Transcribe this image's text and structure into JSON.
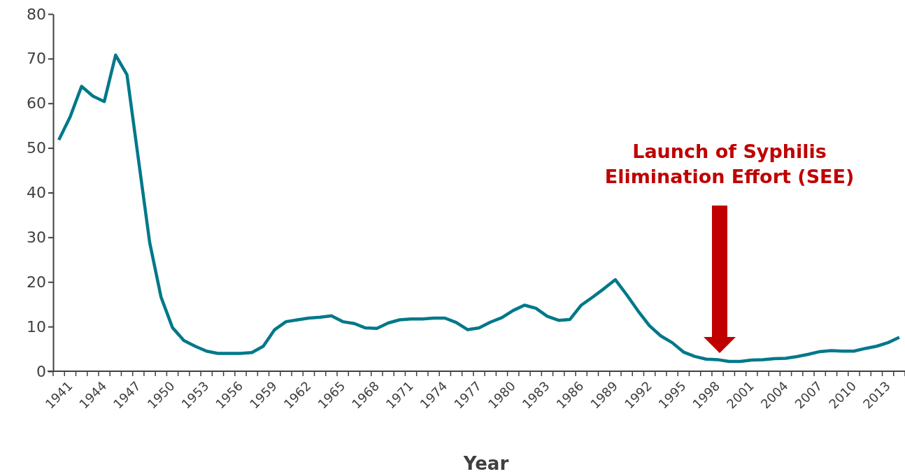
{
  "chart_data": {
    "type": "line",
    "xlabel": "Year",
    "categories": [
      "1941",
      null,
      null,
      "1944",
      null,
      null,
      "1947",
      null,
      null,
      "1950",
      null,
      null,
      "1953",
      null,
      null,
      "1956",
      null,
      null,
      "1959",
      null,
      null,
      "1962",
      null,
      null,
      "1965",
      null,
      null,
      "1968",
      null,
      null,
      "1971",
      null,
      null,
      "1974",
      null,
      null,
      "1977",
      null,
      null,
      "1980",
      null,
      null,
      "1983",
      null,
      null,
      "1986",
      null,
      null,
      "1989",
      null,
      null,
      "1992",
      null,
      null,
      "1995",
      null,
      null,
      "1998",
      null,
      null,
      "2001",
      null,
      null,
      "2004",
      null,
      null,
      "2007",
      null,
      null,
      "2010",
      null,
      null,
      "2013",
      null,
      null
    ],
    "series": [
      {
        "color": "#00788a",
        "values": [
          51.8,
          57.0,
          63.8,
          61.6,
          60.4,
          70.8,
          66.4,
          47.6,
          28.8,
          16.6,
          9.8,
          6.9,
          5.6,
          4.5,
          4.0,
          4.0,
          4.0,
          4.2,
          5.6,
          9.3,
          11.1,
          11.5,
          11.9,
          12.1,
          12.4,
          11.1,
          10.7,
          9.7,
          9.6,
          10.8,
          11.5,
          11.7,
          11.7,
          11.9,
          11.9,
          10.9,
          9.3,
          9.7,
          11.0,
          12.0,
          13.6,
          14.8,
          14.1,
          12.3,
          11.4,
          11.6,
          14.8,
          16.6,
          18.5,
          20.5,
          17.1,
          13.5,
          10.2,
          7.9,
          6.4,
          4.3,
          3.3,
          2.7,
          2.6,
          2.2,
          2.2,
          2.5,
          2.6,
          2.8,
          2.9,
          3.3,
          3.8,
          4.4,
          4.6,
          4.5,
          4.5,
          5.1,
          5.6,
          6.4,
          7.6
        ]
      }
    ],
    "ylim": [
      0,
      80
    ],
    "yticks": [
      0,
      10,
      20,
      30,
      40,
      50,
      60,
      70,
      80
    ],
    "grid": false,
    "marker": "none",
    "line_style": "solid",
    "annotations": [
      "Launch of Syphilis\nElimination Effort (SEE)"
    ]
  }
}
